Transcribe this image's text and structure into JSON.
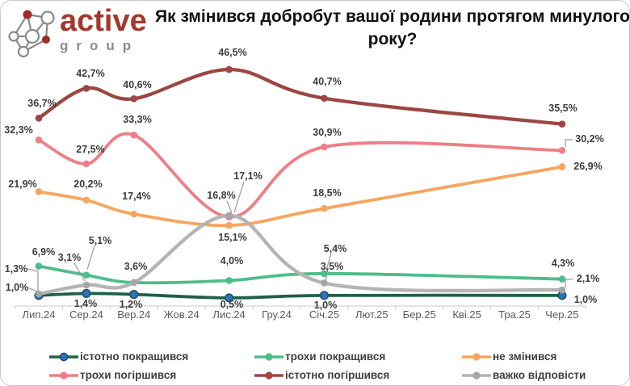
{
  "logo": {
    "brand": "active",
    "subtitle": "group",
    "brand_color": "#A3392C",
    "subtitle_color": "#8C8C8C"
  },
  "title": "Як змінився добробут вашої родини протягом минулого року?",
  "chart_data": {
    "type": "line",
    "title": "Як змінився добробут вашої родини протягом минулого року?",
    "x_axis_months": [
      "Лип.24",
      "Сер.24",
      "Вер.24",
      "Жов.24",
      "Лис.24",
      "Гру.24",
      "Січ.25",
      "Лют.25",
      "Бер.25",
      "Кві.25",
      "Тра.25",
      "Чер.25"
    ],
    "survey_month_indices": [
      0,
      1,
      2,
      4,
      6,
      11
    ],
    "value_suffix": "%",
    "decimal_separator": ",",
    "ylim": [
      0,
      50
    ],
    "grid": false,
    "legend_position": "bottom",
    "series": [
      {
        "name": "істотно покращився",
        "color": "#206044",
        "marker": "#2E74B5",
        "marker_ring": "#1F4E79",
        "values": [
          1.0,
          1.4,
          1.2,
          0.5,
          1.0,
          1.0
        ]
      },
      {
        "name": "трохи покращився",
        "color": "#4DBD8A",
        "values": [
          6.9,
          5.1,
          3.6,
          4.0,
          5.4,
          4.3
        ]
      },
      {
        "name": "не змінився",
        "color": "#F7A55E",
        "values": [
          21.9,
          20.2,
          17.4,
          15.1,
          18.5,
          26.9
        ]
      },
      {
        "name": "трохи погіршився",
        "color": "#EE7E86",
        "values": [
          32.3,
          27.5,
          33.3,
          16.8,
          30.9,
          30.2
        ]
      },
      {
        "name": "істотно погіршився",
        "color": "#9C4742",
        "values": [
          36.7,
          42.7,
          40.6,
          46.5,
          40.7,
          35.5
        ]
      },
      {
        "name": "важко відповісти",
        "color": "#B4B4B4",
        "marker": "#A6A6A6",
        "values": [
          1.3,
          3.1,
          3.6,
          17.1,
          3.5,
          2.1
        ]
      }
    ],
    "legend_rows": [
      [
        0,
        1,
        2
      ],
      [
        3,
        4,
        5
      ]
    ]
  }
}
